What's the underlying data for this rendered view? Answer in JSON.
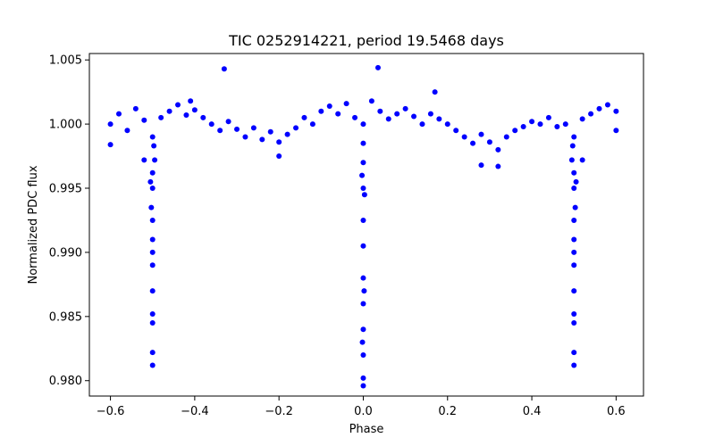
{
  "chart_data": {
    "type": "scatter",
    "title": "TIC 0252914221, period 19.5468 days",
    "xlabel": "Phase",
    "ylabel": "Normalized PDC flux",
    "xlim": [
      -0.65,
      0.665
    ],
    "ylim": [
      0.9788,
      1.0055
    ],
    "xticks": [
      -0.6,
      -0.4,
      -0.2,
      0.0,
      0.2,
      0.4,
      0.6
    ],
    "xtick_labels": [
      "−0.6",
      "−0.4",
      "−0.2",
      "0.0",
      "0.2",
      "0.4",
      "0.6"
    ],
    "yticks": [
      0.98,
      0.985,
      0.99,
      0.995,
      1.0,
      1.005
    ],
    "ytick_labels": [
      "0.980",
      "0.985",
      "0.990",
      "0.995",
      "1.000",
      "1.005"
    ],
    "grid": false,
    "legend": "none",
    "marker_color": "#0000ff",
    "series": [
      {
        "values": [
          [
            -0.6,
            1.0
          ],
          [
            -0.58,
            1.0008
          ],
          [
            -0.56,
            0.9995
          ],
          [
            -0.54,
            1.0012
          ],
          [
            -0.52,
            1.0003
          ],
          [
            -0.5,
            0.999
          ],
          [
            -0.48,
            1.0005
          ],
          [
            -0.46,
            1.001
          ],
          [
            -0.44,
            1.0015
          ],
          [
            -0.42,
            1.0007
          ],
          [
            -0.4,
            1.0011
          ],
          [
            -0.38,
            1.0005
          ],
          [
            -0.36,
            1.0
          ],
          [
            -0.34,
            0.9995
          ],
          [
            -0.32,
            1.0002
          ],
          [
            -0.3,
            0.9996
          ],
          [
            -0.28,
            0.999
          ],
          [
            -0.26,
            0.9997
          ],
          [
            -0.24,
            0.9988
          ],
          [
            -0.22,
            0.9994
          ],
          [
            -0.2,
            0.9986
          ],
          [
            -0.18,
            0.9992
          ],
          [
            -0.16,
            0.9997
          ],
          [
            -0.14,
            1.0005
          ],
          [
            -0.12,
            1.0
          ],
          [
            -0.1,
            1.001
          ],
          [
            -0.08,
            1.0014
          ],
          [
            -0.06,
            1.0008
          ],
          [
            -0.04,
            1.0016
          ],
          [
            -0.02,
            1.0005
          ],
          [
            0.0,
            1.0
          ],
          [
            0.02,
            1.0018
          ],
          [
            0.04,
            1.001
          ],
          [
            0.06,
            1.0004
          ],
          [
            0.08,
            1.0008
          ],
          [
            0.1,
            1.0012
          ],
          [
            0.12,
            1.0006
          ],
          [
            0.14,
            1.0
          ],
          [
            0.16,
            1.0008
          ],
          [
            0.18,
            1.0004
          ],
          [
            0.2,
            1.0
          ],
          [
            0.22,
            0.9995
          ],
          [
            0.24,
            0.999
          ],
          [
            0.26,
            0.9985
          ],
          [
            0.28,
            0.9992
          ],
          [
            0.3,
            0.9986
          ],
          [
            0.32,
            0.998
          ],
          [
            0.34,
            0.999
          ],
          [
            0.36,
            0.9995
          ],
          [
            0.38,
            0.9998
          ],
          [
            0.4,
            1.0002
          ],
          [
            0.42,
            1.0
          ],
          [
            0.44,
            1.0005
          ],
          [
            0.46,
            0.9998
          ],
          [
            0.48,
            1.0
          ],
          [
            0.5,
            0.999
          ],
          [
            0.52,
            1.0004
          ],
          [
            0.54,
            1.0008
          ],
          [
            0.56,
            1.0012
          ],
          [
            0.58,
            1.0015
          ],
          [
            0.6,
            1.001
          ],
          [
            -0.33,
            1.0043
          ],
          [
            0.035,
            1.0044
          ],
          [
            -0.41,
            1.0018
          ],
          [
            0.17,
            1.0025
          ],
          [
            -0.2,
            0.9975
          ],
          [
            0.28,
            0.9968
          ],
          [
            0.32,
            0.9967
          ],
          [
            -0.6,
            0.9984
          ],
          [
            0.6,
            0.9995
          ],
          [
            0.0,
            0.9796
          ],
          [
            0.0,
            0.9802
          ],
          [
            0.0,
            0.982
          ],
          [
            0.0,
            0.984
          ],
          [
            0.0,
            0.986
          ],
          [
            0.0,
            0.988
          ],
          [
            0.0,
            0.9905
          ],
          [
            0.0,
            0.9925
          ],
          [
            0.0,
            0.995
          ],
          [
            0.0,
            0.997
          ],
          [
            0.0,
            0.9985
          ],
          [
            -0.003,
            0.996
          ],
          [
            0.003,
            0.9945
          ],
          [
            -0.002,
            0.983
          ],
          [
            0.002,
            0.987
          ],
          [
            -0.5,
            0.9812
          ],
          [
            -0.5,
            0.9822
          ],
          [
            -0.5,
            0.9845
          ],
          [
            -0.5,
            0.987
          ],
          [
            -0.5,
            0.989
          ],
          [
            -0.5,
            0.991
          ],
          [
            -0.5,
            0.9925
          ],
          [
            -0.5,
            0.995
          ],
          [
            -0.5,
            0.9962
          ],
          [
            -0.495,
            0.9972
          ],
          [
            -0.505,
            0.9955
          ],
          [
            -0.497,
            0.9983
          ],
          [
            -0.503,
            0.9935
          ],
          [
            -0.5,
            0.99
          ],
          [
            -0.5,
            0.9852
          ],
          [
            0.5,
            0.9812
          ],
          [
            0.5,
            0.9822
          ],
          [
            0.5,
            0.9845
          ],
          [
            0.5,
            0.987
          ],
          [
            0.5,
            0.989
          ],
          [
            0.5,
            0.991
          ],
          [
            0.5,
            0.9925
          ],
          [
            0.5,
            0.995
          ],
          [
            0.5,
            0.9962
          ],
          [
            0.495,
            0.9972
          ],
          [
            0.505,
            0.9955
          ],
          [
            0.497,
            0.9983
          ],
          [
            0.503,
            0.9935
          ],
          [
            0.5,
            0.99
          ],
          [
            0.5,
            0.9852
          ],
          [
            -0.52,
            0.9972
          ],
          [
            0.52,
            0.9972
          ]
        ]
      }
    ]
  }
}
